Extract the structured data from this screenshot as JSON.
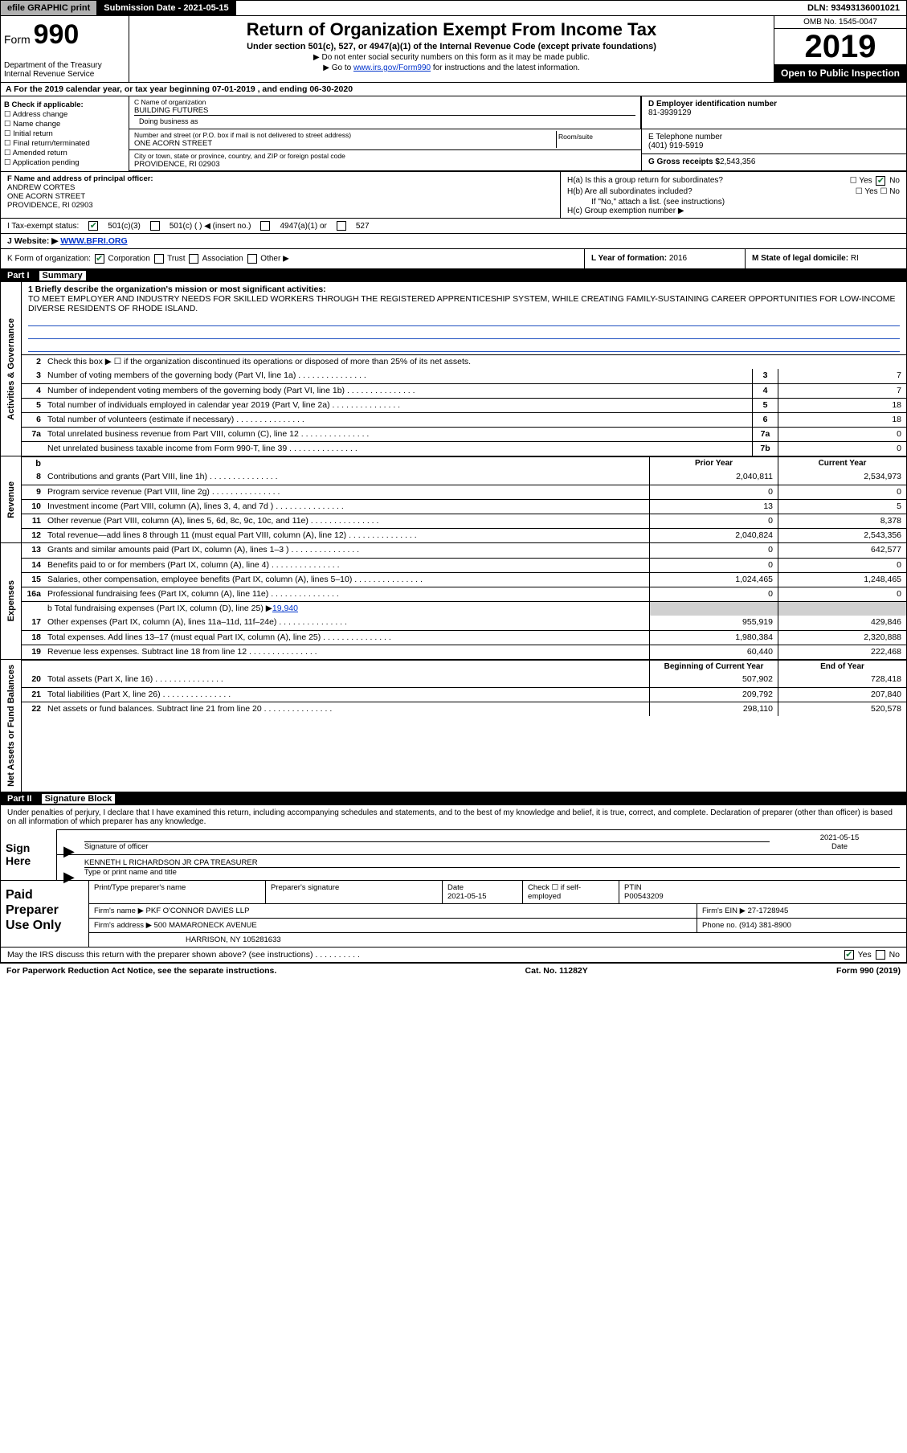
{
  "topbar": {
    "efile": "efile GRAPHIC print",
    "submission": "Submission Date - 2021-05-15",
    "dln": "DLN: 93493136001021"
  },
  "header": {
    "form": "Form",
    "num": "990",
    "dept": "Department of the Treasury",
    "irs": "Internal Revenue Service",
    "title": "Return of Organization Exempt From Income Tax",
    "sub1": "Under section 501(c), 527, or 4947(a)(1) of the Internal Revenue Code (except private foundations)",
    "sub2": "▶ Do not enter social security numbers on this form as it may be made public.",
    "sub3_pre": "▶ Go to ",
    "sub3_link": "www.irs.gov/Form990",
    "sub3_post": " for instructions and the latest information.",
    "omb": "OMB No. 1545-0047",
    "year": "2019",
    "inspect": "Open to Public Inspection"
  },
  "rowA": "A For the 2019 calendar year, or tax year beginning 07-01-2019    , and ending 06-30-2020",
  "colB": {
    "hdr": "B Check if applicable:",
    "opts": [
      "Address change",
      "Name change",
      "Initial return",
      "Final return/terminated",
      "Amended return",
      "Application pending"
    ]
  },
  "colC": {
    "name_lbl": "C Name of organization",
    "name": "BUILDING FUTURES",
    "dba_lbl": "Doing business as",
    "street_lbl": "Number and street (or P.O. box if mail is not delivered to street address)",
    "street": "ONE ACORN STREET",
    "room_lbl": "Room/suite",
    "city_lbl": "City or town, state or province, country, and ZIP or foreign postal code",
    "city": "PROVIDENCE, RI  02903"
  },
  "colD": {
    "lbl": "D Employer identification number",
    "val": "81-3939129"
  },
  "colE": {
    "lbl": "E Telephone number",
    "val": "(401) 919-5919"
  },
  "colG": {
    "lbl": "G Gross receipts $",
    "val": "2,543,356"
  },
  "rowF": {
    "lbl": "F  Name and address of principal officer:",
    "name": "ANDREW CORTES",
    "addr1": "ONE ACORN STREET",
    "addr2": "PROVIDENCE, RI  02903"
  },
  "rowH": {
    "a": "H(a)  Is this a group return for subordinates?",
    "a_yes": "Yes",
    "a_no": "No",
    "b": "H(b)  Are all subordinates included?",
    "b_yes": "Yes",
    "b_no": "No",
    "b2": "If \"No,\" attach a list. (see instructions)",
    "c": "H(c)  Group exemption number ▶"
  },
  "rowI": {
    "lbl": "I  Tax-exempt status:",
    "o1": "501(c)(3)",
    "o2": "501(c) (  ) ◀ (insert no.)",
    "o3": "4947(a)(1) or",
    "o4": "527"
  },
  "rowJ": {
    "lbl": "J  Website: ▶ ",
    "val": "WWW.BFRI.ORG"
  },
  "rowK": {
    "lbl": "K Form of organization:",
    "o1": "Corporation",
    "o2": "Trust",
    "o3": "Association",
    "o4": "Other ▶"
  },
  "rowL": {
    "lbl": "L Year of formation:",
    "val": "2016"
  },
  "rowM": {
    "lbl": "M State of legal domicile:",
    "val": "RI"
  },
  "part1": {
    "num": "Part I",
    "title": "Summary"
  },
  "mission": {
    "lbl": "1  Briefly describe the organization's mission or most significant activities:",
    "text": "TO MEET EMPLOYER AND INDUSTRY NEEDS FOR SKILLED WORKERS THROUGH THE REGISTERED APPRENTICESHIP SYSTEM, WHILE CREATING FAMILY-SUSTAINING CAREER OPPORTUNITIES FOR LOW-INCOME DIVERSE RESIDENTS OF RHODE ISLAND."
  },
  "actgov": {
    "label": "Activities & Governance",
    "l2": "Check this box ▶ ☐  if the organization discontinued its operations or disposed of more than 25% of its net assets.",
    "rows": [
      {
        "n": "3",
        "d": "Number of voting members of the governing body (Part VI, line 1a)",
        "b": "3",
        "v": "7"
      },
      {
        "n": "4",
        "d": "Number of independent voting members of the governing body (Part VI, line 1b)",
        "b": "4",
        "v": "7"
      },
      {
        "n": "5",
        "d": "Total number of individuals employed in calendar year 2019 (Part V, line 2a)",
        "b": "5",
        "v": "18"
      },
      {
        "n": "6",
        "d": "Total number of volunteers (estimate if necessary)",
        "b": "6",
        "v": "18"
      },
      {
        "n": "7a",
        "d": "Total unrelated business revenue from Part VIII, column (C), line 12",
        "b": "7a",
        "v": "0"
      },
      {
        "n": "",
        "d": "Net unrelated business taxable income from Form 990-T, line 39",
        "b": "7b",
        "v": "0"
      }
    ]
  },
  "revhdr": {
    "py": "Prior Year",
    "cy": "Current Year"
  },
  "revenue": {
    "label": "Revenue",
    "rows": [
      {
        "n": "8",
        "d": "Contributions and grants (Part VIII, line 1h)",
        "py": "2,040,811",
        "cy": "2,534,973"
      },
      {
        "n": "9",
        "d": "Program service revenue (Part VIII, line 2g)",
        "py": "0",
        "cy": "0"
      },
      {
        "n": "10",
        "d": "Investment income (Part VIII, column (A), lines 3, 4, and 7d )",
        "py": "13",
        "cy": "5"
      },
      {
        "n": "11",
        "d": "Other revenue (Part VIII, column (A), lines 5, 6d, 8c, 9c, 10c, and 11e)",
        "py": "0",
        "cy": "8,378"
      },
      {
        "n": "12",
        "d": "Total revenue—add lines 8 through 11 (must equal Part VIII, column (A), line 12)",
        "py": "2,040,824",
        "cy": "2,543,356"
      }
    ]
  },
  "expenses": {
    "label": "Expenses",
    "rows": [
      {
        "n": "13",
        "d": "Grants and similar amounts paid (Part IX, column (A), lines 1–3 )",
        "py": "0",
        "cy": "642,577"
      },
      {
        "n": "14",
        "d": "Benefits paid to or for members (Part IX, column (A), line 4)",
        "py": "0",
        "cy": "0"
      },
      {
        "n": "15",
        "d": "Salaries, other compensation, employee benefits (Part IX, column (A), lines 5–10)",
        "py": "1,024,465",
        "cy": "1,248,465"
      },
      {
        "n": "16a",
        "d": "Professional fundraising fees (Part IX, column (A), line 11e)",
        "py": "0",
        "cy": "0"
      }
    ],
    "line_b": "b  Total fundraising expenses (Part IX, column (D), line 25) ▶",
    "line_b_val": "19,940",
    "rows2": [
      {
        "n": "17",
        "d": "Other expenses (Part IX, column (A), lines 11a–11d, 11f–24e)",
        "py": "955,919",
        "cy": "429,846"
      },
      {
        "n": "18",
        "d": "Total expenses. Add lines 13–17 (must equal Part IX, column (A), line 25)",
        "py": "1,980,384",
        "cy": "2,320,888"
      },
      {
        "n": "19",
        "d": "Revenue less expenses. Subtract line 18 from line 12",
        "py": "60,440",
        "cy": "222,468"
      }
    ]
  },
  "nethdr": {
    "py": "Beginning of Current Year",
    "cy": "End of Year"
  },
  "net": {
    "label": "Net Assets or Fund Balances",
    "rows": [
      {
        "n": "20",
        "d": "Total assets (Part X, line 16)",
        "py": "507,902",
        "cy": "728,418"
      },
      {
        "n": "21",
        "d": "Total liabilities (Part X, line 26)",
        "py": "209,792",
        "cy": "207,840"
      },
      {
        "n": "22",
        "d": "Net assets or fund balances. Subtract line 21 from line 20",
        "py": "298,110",
        "cy": "520,578"
      }
    ]
  },
  "part2": {
    "num": "Part II",
    "title": "Signature Block"
  },
  "sig": {
    "decl": "Under penalties of perjury, I declare that I have examined this return, including accompanying schedules and statements, and to the best of my knowledge and belief, it is true, correct, and complete. Declaration of preparer (other than officer) is based on all information of which preparer has any knowledge.",
    "here": "Sign Here",
    "sig_lbl": "Signature of officer",
    "date_lbl": "Date",
    "date": "2021-05-15",
    "name": "KENNETH L RICHARDSON JR CPA  TREASURER",
    "name_lbl": "Type or print name and title"
  },
  "paid": {
    "left": "Paid Preparer Use Only",
    "h1": "Print/Type preparer's name",
    "h2": "Preparer's signature",
    "h3": "Date",
    "h3v": "2021-05-15",
    "h4": "Check ☐  if self-employed",
    "h5": "PTIN",
    "h5v": "P00543209",
    "firm_lbl": "Firm's name    ▶",
    "firm": "PKF O'CONNOR DAVIES LLP",
    "ein_lbl": "Firm's EIN ▶",
    "ein": "27-1728945",
    "addr_lbl": "Firm's address ▶",
    "addr1": "500 MAMARONECK AVENUE",
    "addr2": "HARRISON, NY  105281633",
    "phone_lbl": "Phone no.",
    "phone": "(914) 381-8900"
  },
  "irsline": {
    "q": "May the IRS discuss this return with the preparer shown above? (see instructions)",
    "yes": "Yes",
    "no": "No"
  },
  "footer": {
    "l": "For Paperwork Reduction Act Notice, see the separate instructions.",
    "m": "Cat. No. 11282Y",
    "r": "Form 990 (2019)"
  }
}
